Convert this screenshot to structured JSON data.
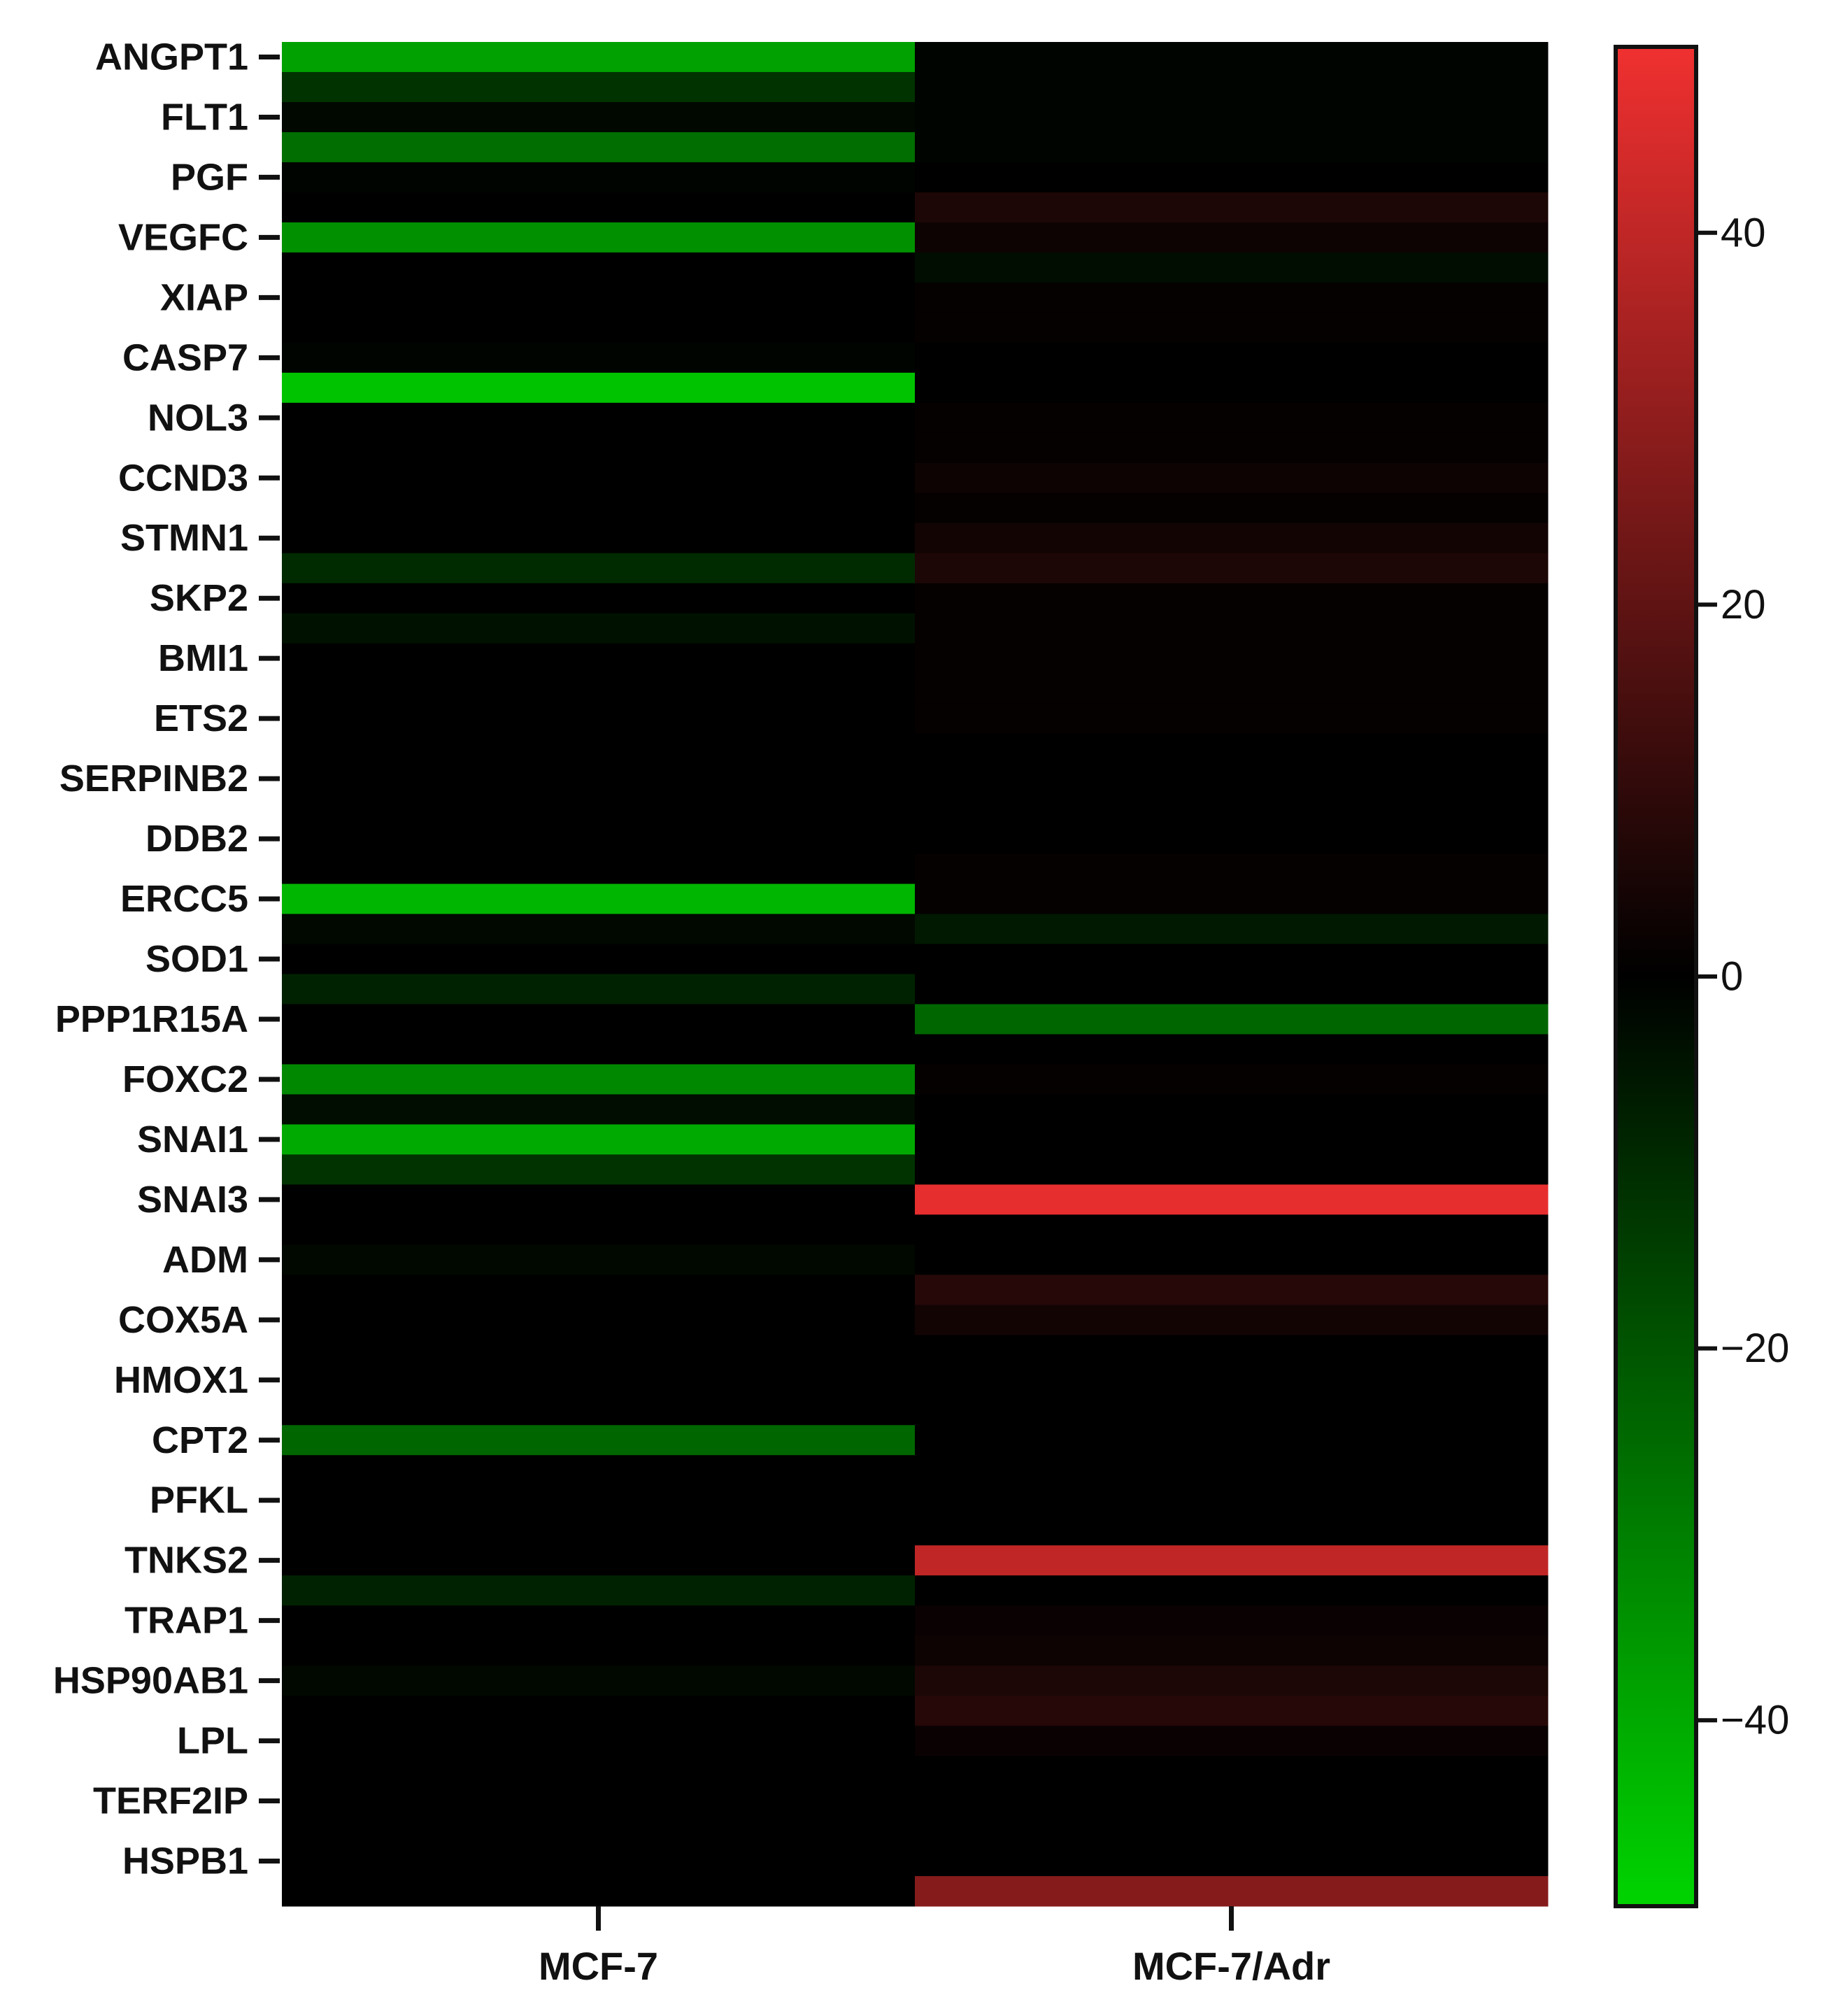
{
  "chart_data": {
    "type": "heatmap",
    "title": "",
    "xlabel": "",
    "ylabel": "",
    "columns": [
      "MCF-7",
      "MCF-7/Adr"
    ],
    "row_labels": [
      "ANGPT1",
      "FLT1",
      "PGF",
      "VEGFC",
      "XIAP",
      "CASP7",
      "NOL3",
      "CCND3",
      "STMN1",
      "SKP2",
      "BMI1",
      "ETS2",
      "SERPINB2",
      "DDB2",
      "ERCC5",
      "SOD1",
      "PPP1R15A",
      "FOXC2",
      "SNAI1",
      "SNAI3",
      "ADM",
      "COX5A",
      "HMOX1",
      "CPT2",
      "PFKL",
      "TNKS2",
      "TRAP1",
      "HSP90AB1",
      "LPL",
      "TERF2IP",
      "HSPB1"
    ],
    "row_count": 62,
    "values": [
      [
        -38,
        -1
      ],
      [
        -12,
        -1
      ],
      [
        -2,
        -1
      ],
      [
        -26,
        -1
      ],
      [
        -1,
        0
      ],
      [
        0,
        6
      ],
      [
        -34,
        3
      ],
      [
        0,
        -3
      ],
      [
        0,
        1
      ],
      [
        0,
        1
      ],
      [
        -1,
        0
      ],
      [
        -46,
        0
      ],
      [
        0,
        1
      ],
      [
        0,
        1
      ],
      [
        0,
        3
      ],
      [
        0,
        1
      ],
      [
        0,
        4
      ],
      [
        -10,
        6
      ],
      [
        0,
        1
      ],
      [
        -4,
        1
      ],
      [
        0,
        1
      ],
      [
        0,
        1
      ],
      [
        0,
        1
      ],
      [
        0,
        0
      ],
      [
        0,
        0
      ],
      [
        0,
        0
      ],
      [
        0,
        0
      ],
      [
        0,
        1
      ],
      [
        -43,
        1
      ],
      [
        -2,
        -6
      ],
      [
        0,
        0
      ],
      [
        -8,
        0
      ],
      [
        0,
        -24
      ],
      [
        0,
        0
      ],
      [
        -32,
        1
      ],
      [
        -3,
        0
      ],
      [
        -40,
        0
      ],
      [
        -12,
        0
      ],
      [
        0,
        48
      ],
      [
        0,
        0
      ],
      [
        -2,
        0
      ],
      [
        0,
        8
      ],
      [
        0,
        4
      ],
      [
        0,
        0
      ],
      [
        0,
        0
      ],
      [
        0,
        0
      ],
      [
        -24,
        0
      ],
      [
        0,
        0
      ],
      [
        0,
        0
      ],
      [
        0,
        0
      ],
      [
        0,
        40
      ],
      [
        -8,
        0
      ],
      [
        0,
        2
      ],
      [
        0,
        3
      ],
      [
        -2,
        6
      ],
      [
        0,
        8
      ],
      [
        0,
        2
      ],
      [
        0,
        0
      ],
      [
        0,
        0
      ],
      [
        0,
        0
      ],
      [
        0,
        0
      ],
      [
        0,
        28
      ]
    ],
    "colorbar": {
      "min": -50,
      "max": 50,
      "ticks": [
        40,
        20,
        0,
        -20,
        -40
      ],
      "tick_labels": [
        "40",
        "20",
        "0",
        "−20",
        "−40"
      ],
      "low_color": "#00d400",
      "mid_color": "#000000",
      "high_color": "#f03030",
      "placement": "right"
    },
    "grid": false
  }
}
